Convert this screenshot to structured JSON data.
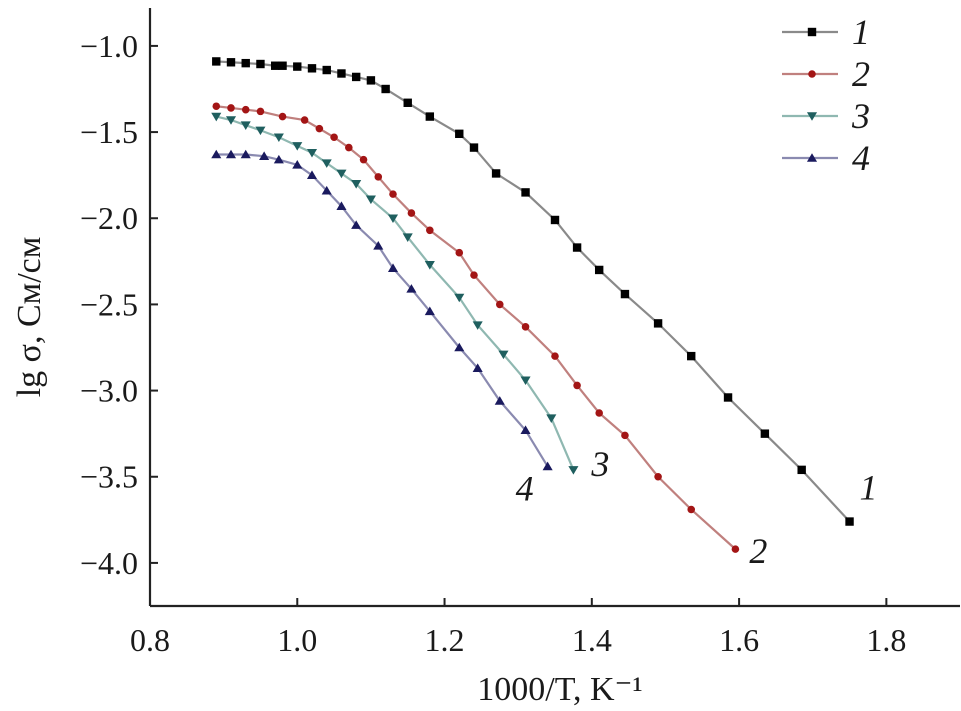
{
  "chart_data": {
    "type": "line",
    "xlabel": "1000/T, K⁻¹",
    "ylabel": "lg σ, См/см",
    "xlim": [
      0.8,
      1.9
    ],
    "ylim": [
      -4.25,
      -0.78
    ],
    "xticks": [
      "0.8",
      "1.0",
      "1.2",
      "1.4",
      "1.6",
      "1.8"
    ],
    "yticks": [
      "−1.0",
      "−1.5",
      "−2.0",
      "−2.5",
      "−3.0",
      "−3.5",
      "−4.0"
    ],
    "legend_position": "top-right",
    "series": [
      {
        "name": "1",
        "color": "#8a8a8a",
        "marker": "square",
        "marker_color": "#000000",
        "end_label": "1",
        "x": [
          0.89,
          0.91,
          0.93,
          0.95,
          0.97,
          0.98,
          1.0,
          1.02,
          1.04,
          1.06,
          1.08,
          1.1,
          1.12,
          1.15,
          1.18,
          1.22,
          1.24,
          1.27,
          1.31,
          1.35,
          1.38,
          1.41,
          1.445,
          1.49,
          1.535,
          1.585,
          1.635,
          1.685,
          1.75
        ],
        "y": [
          -1.09,
          -1.095,
          -1.1,
          -1.105,
          -1.115,
          -1.115,
          -1.12,
          -1.13,
          -1.14,
          -1.16,
          -1.18,
          -1.2,
          -1.25,
          -1.33,
          -1.41,
          -1.51,
          -1.59,
          -1.74,
          -1.85,
          -2.01,
          -2.17,
          -2.3,
          -2.44,
          -2.61,
          -2.8,
          -3.04,
          -3.25,
          -3.46,
          -3.76
        ]
      },
      {
        "name": "2",
        "color": "#c0807e",
        "marker": "circle",
        "marker_color": "#a31515",
        "end_label": "2",
        "x": [
          0.89,
          0.91,
          0.93,
          0.95,
          0.98,
          1.01,
          1.03,
          1.05,
          1.07,
          1.09,
          1.11,
          1.13,
          1.155,
          1.18,
          1.22,
          1.24,
          1.275,
          1.31,
          1.35,
          1.38,
          1.41,
          1.445,
          1.49,
          1.535,
          1.595
        ],
        "y": [
          -1.35,
          -1.36,
          -1.37,
          -1.38,
          -1.41,
          -1.43,
          -1.48,
          -1.53,
          -1.59,
          -1.66,
          -1.76,
          -1.86,
          -1.97,
          -2.07,
          -2.2,
          -2.33,
          -2.5,
          -2.63,
          -2.8,
          -2.97,
          -3.13,
          -3.26,
          -3.5,
          -3.69,
          -3.92
        ]
      },
      {
        "name": "3",
        "color": "#8fb8b1",
        "marker": "triangle-down",
        "marker_color": "#1f5f5f",
        "end_label": "3",
        "x": [
          0.89,
          0.91,
          0.93,
          0.95,
          0.975,
          1.0,
          1.02,
          1.04,
          1.06,
          1.08,
          1.1,
          1.13,
          1.15,
          1.18,
          1.22,
          1.245,
          1.28,
          1.31,
          1.345,
          1.375
        ],
        "y": [
          -1.41,
          -1.43,
          -1.46,
          -1.49,
          -1.53,
          -1.58,
          -1.62,
          -1.68,
          -1.74,
          -1.8,
          -1.89,
          -2.0,
          -2.11,
          -2.27,
          -2.46,
          -2.62,
          -2.79,
          -2.94,
          -3.16,
          -3.46
        ]
      },
      {
        "name": "4",
        "color": "#8a8ab0",
        "marker": "triangle-up",
        "marker_color": "#1a1a5e",
        "end_label": "4",
        "x": [
          0.89,
          0.91,
          0.93,
          0.955,
          0.975,
          1.0,
          1.02,
          1.04,
          1.06,
          1.08,
          1.11,
          1.13,
          1.155,
          1.18,
          1.22,
          1.245,
          1.275,
          1.31,
          1.34
        ],
        "y": [
          -1.63,
          -1.63,
          -1.63,
          -1.64,
          -1.66,
          -1.69,
          -1.75,
          -1.84,
          -1.93,
          -2.04,
          -2.16,
          -2.29,
          -2.41,
          -2.54,
          -2.75,
          -2.87,
          -3.06,
          -3.23,
          -3.44
        ]
      }
    ]
  }
}
